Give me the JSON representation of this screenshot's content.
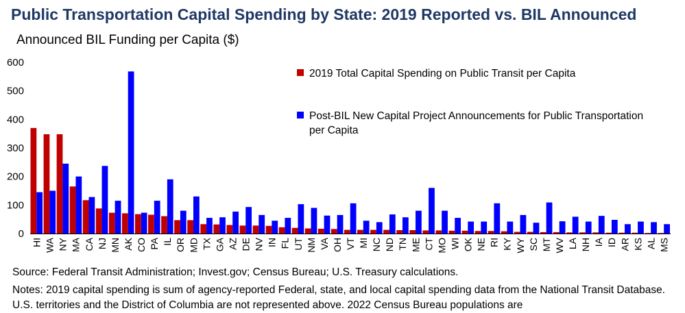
{
  "title": "Public Transportation Capital Spending by State: 2019 Reported vs. BIL Announced",
  "footer": {
    "source": "Source: Federal Transit Administration; Invest.gov; Census Bureau; U.S. Treasury calculations.",
    "notes": "Notes: 2019 capital spending is sum of agency-reported Federal, state, and local capital spending data from the National Transit Database. U.S. territories and the District of Columbia are not represented above. 2022 Census Bureau populations are"
  },
  "colors": {
    "series_2019": "#c00000",
    "series_bil": "#0000ff",
    "axis": "#000000"
  },
  "chart_data": {
    "type": "bar",
    "title": "",
    "ylabel": "Announced BIL Funding per Capita ($)",
    "xlabel": "",
    "ylim": [
      0,
      600
    ],
    "yticks": [
      0,
      100,
      200,
      300,
      400,
      500,
      600
    ],
    "grid": false,
    "legend_position": "top-right",
    "categories": [
      "HI",
      "WA",
      "NY",
      "MA",
      "CA",
      "NJ",
      "MN",
      "AK",
      "CO",
      "PA",
      "IL",
      "OR",
      "MD",
      "TX",
      "GA",
      "AZ",
      "DE",
      "NV",
      "IN",
      "FL",
      "UT",
      "NM",
      "VA",
      "OH",
      "VT",
      "MI",
      "NC",
      "ND",
      "TN",
      "ME",
      "CT",
      "MO",
      "WI",
      "OK",
      "NE",
      "RI",
      "KY",
      "WY",
      "SC",
      "MT",
      "WV",
      "LA",
      "NH",
      "IA",
      "ID",
      "AR",
      "KS",
      "AL",
      "MS"
    ],
    "series": [
      {
        "name": "2019 Total Capital Spending on Public Transit per Capita",
        "values": [
          370,
          348,
          348,
          165,
          117,
          88,
          73,
          71,
          68,
          66,
          61,
          47,
          47,
          33,
          32,
          30,
          28,
          28,
          27,
          22,
          20,
          18,
          17,
          16,
          13,
          13,
          13,
          13,
          12,
          12,
          11,
          11,
          10,
          10,
          9,
          9,
          8,
          6,
          6,
          5,
          5,
          4,
          4,
          4,
          3,
          3,
          3,
          2,
          2
        ]
      },
      {
        "name": "Post-BIL New Capital Project Announcements for Public Transportation per Capita",
        "values": [
          145,
          150,
          245,
          200,
          128,
          237,
          115,
          568,
          73,
          115,
          190,
          80,
          130,
          55,
          57,
          77,
          93,
          65,
          45,
          55,
          103,
          90,
          63,
          65,
          106,
          45,
          40,
          67,
          57,
          80,
          160,
          80,
          55,
          42,
          42,
          106,
          42,
          65,
          38,
          109,
          43,
          59,
          42,
          62,
          48,
          33,
          42,
          40,
          33
        ]
      }
    ]
  }
}
